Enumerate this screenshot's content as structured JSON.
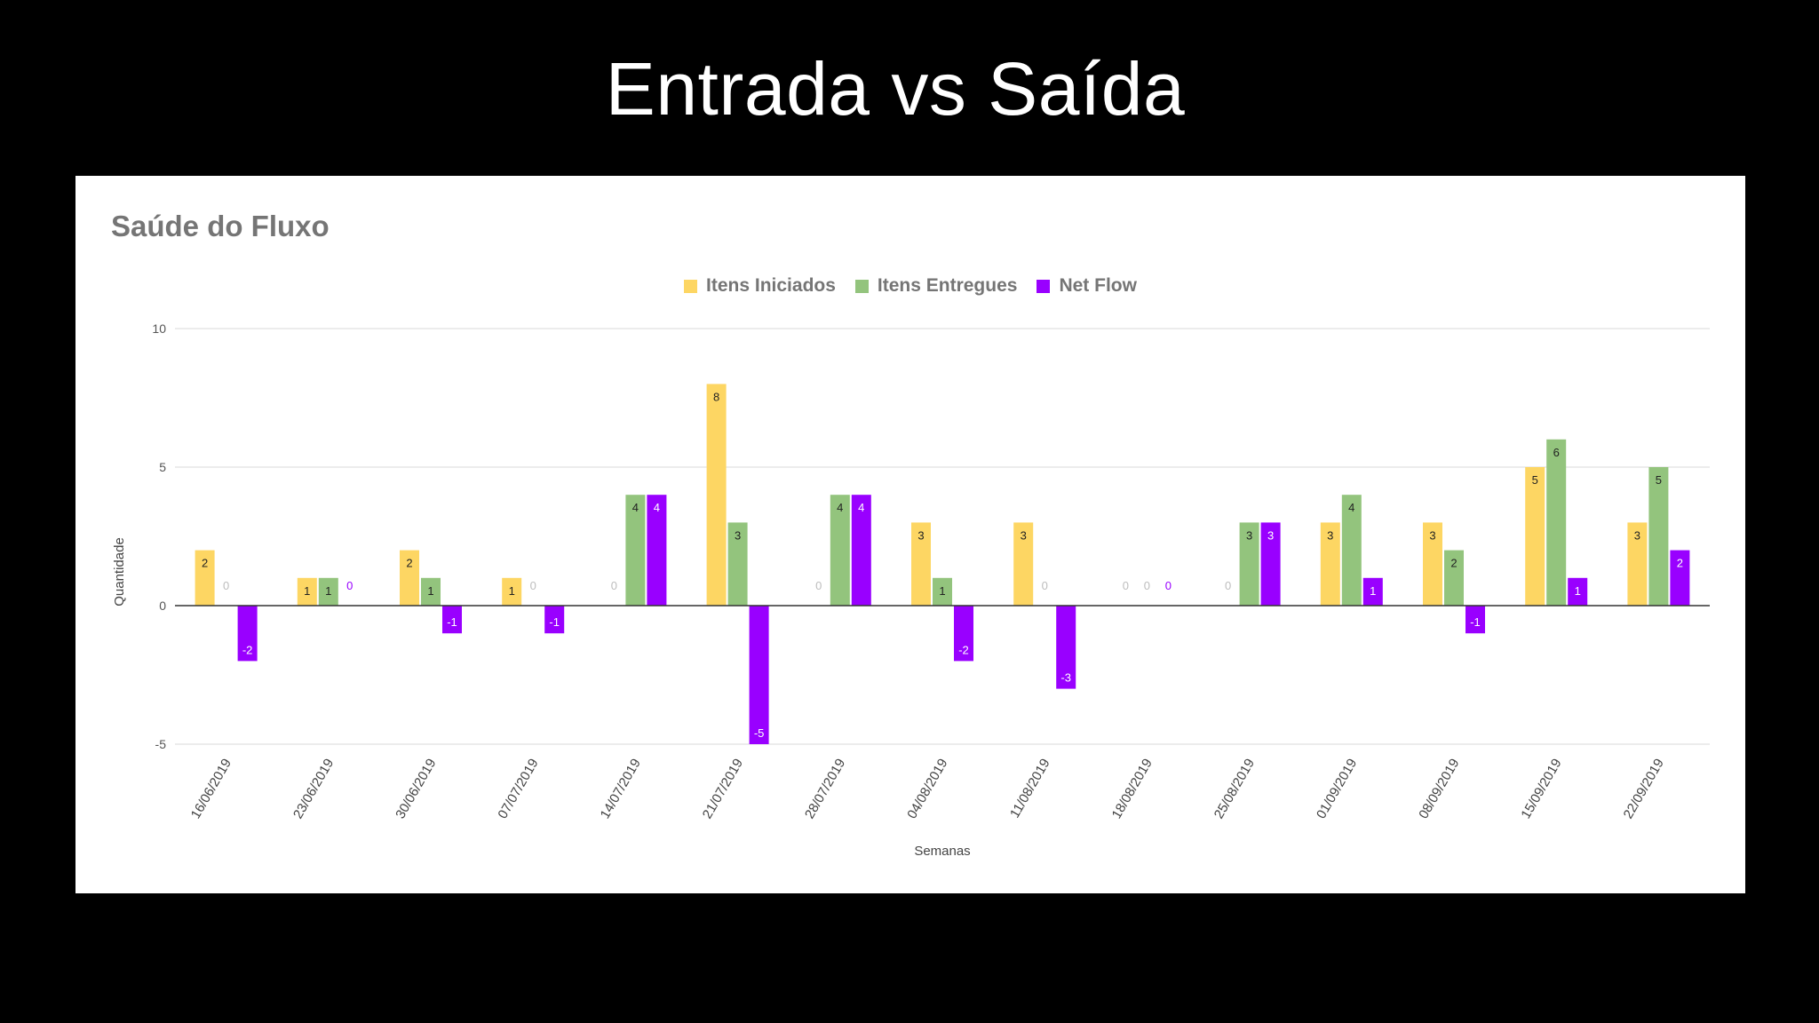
{
  "slide": {
    "title": "Entrada vs Saída"
  },
  "chart_data": {
    "type": "bar",
    "title": "Saúde do Fluxo",
    "xlabel": "Semanas",
    "ylabel": "Quantidade",
    "ylim": [
      -5,
      10
    ],
    "yticks": [
      -5,
      0,
      5,
      10
    ],
    "grid": true,
    "legend_position": "top-center",
    "categories": [
      "16/06/2019",
      "23/06/2019",
      "30/06/2019",
      "07/07/2019",
      "14/07/2019",
      "21/07/2019",
      "28/07/2019",
      "04/08/2019",
      "11/08/2019",
      "18/08/2019",
      "25/08/2019",
      "01/09/2019",
      "08/09/2019",
      "15/09/2019",
      "22/09/2019"
    ],
    "series": [
      {
        "name": "Itens Iniciados",
        "color": "#fdd663",
        "values": [
          2,
          1,
          2,
          1,
          0,
          8,
          0,
          3,
          3,
          0,
          0,
          3,
          3,
          5,
          3
        ]
      },
      {
        "name": "Itens Entregues",
        "color": "#93c47d",
        "values": [
          0,
          1,
          1,
          0,
          4,
          3,
          4,
          1,
          0,
          0,
          3,
          4,
          2,
          6,
          5
        ]
      },
      {
        "name": "Net Flow",
        "color": "#9900ff",
        "values": [
          -2,
          0,
          -1,
          -1,
          4,
          -5,
          4,
          -2,
          -3,
          0,
          3,
          1,
          -1,
          1,
          2
        ]
      }
    ]
  }
}
